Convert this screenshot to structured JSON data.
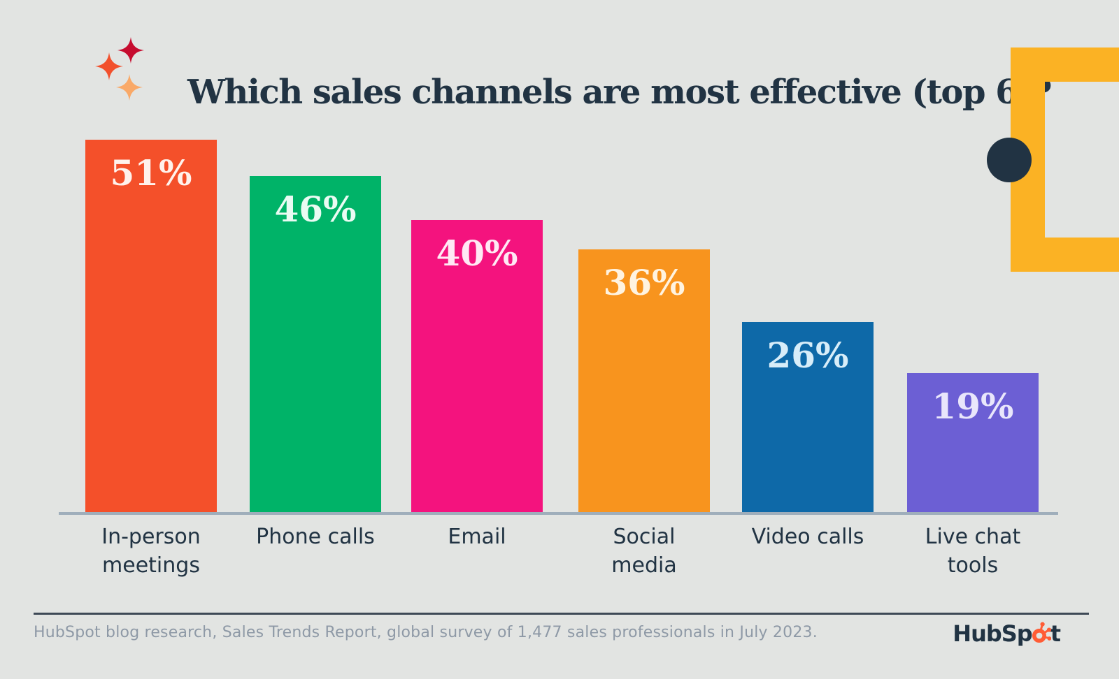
{
  "page": {
    "background": "#E2E4E2",
    "accent_navy": "#213343"
  },
  "header": {
    "title": "Which sales channels are most effective (top 6)?",
    "sparkle_colors": [
      "#C60C2F",
      "#F2502C",
      "#F9A968"
    ]
  },
  "chart_data": {
    "type": "bar",
    "title": "Which sales channels are most effective (top 6)?",
    "categories": [
      "In-person meetings",
      "Phone calls",
      "Email",
      "Social media",
      "Video calls",
      "Live chat tools"
    ],
    "category_lines": [
      [
        "In-person",
        "meetings"
      ],
      [
        "Phone calls"
      ],
      [
        "Email"
      ],
      [
        "Social",
        "media"
      ],
      [
        "Video calls"
      ],
      [
        "Live chat",
        "tools"
      ]
    ],
    "values": [
      51,
      46,
      40,
      36,
      26,
      19
    ],
    "value_labels": [
      "51%",
      "46%",
      "40%",
      "36%",
      "26%",
      "19%"
    ],
    "bar_colors": [
      "#F4502A",
      "#00B368",
      "#F4137E",
      "#F8941E",
      "#0E69A8",
      "#6C5FD4"
    ],
    "value_label_colors": [
      "#FFF2EC",
      "#EAFBF3",
      "#FFE9F4",
      "#FFF3E0",
      "#D7EDF9",
      "#E9E6FB"
    ],
    "unit": "percent",
    "ylim": [
      0,
      55
    ],
    "grid": false,
    "legend": "none",
    "axis_line_color": "#9FAEBB"
  },
  "decor": {
    "yellow_frame_color": "#FBB224",
    "navy_circle_color": "#213343"
  },
  "footer": {
    "source_text": "HubSpot blog research, Sales Trends Report, global survey of 1,477 sales professionals in July 2023.",
    "divider_color": "#3E4956",
    "logo": {
      "pre": "HubSp",
      "post": "t",
      "sprocket_color": "#FF5C35",
      "text_color": "#213343"
    }
  }
}
